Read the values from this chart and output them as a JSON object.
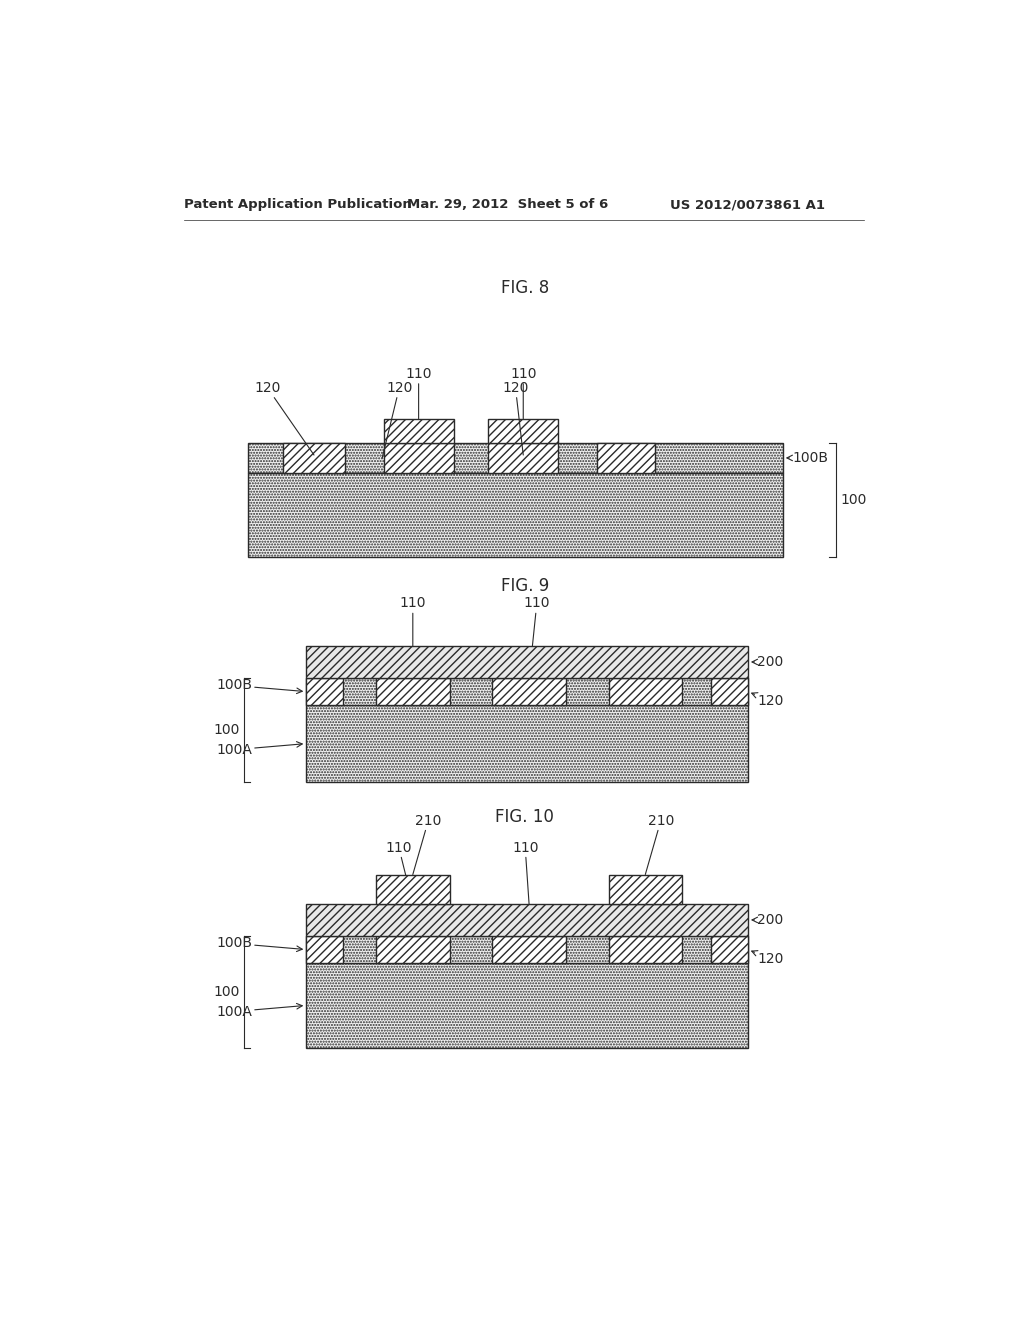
{
  "bg_color": "#ffffff",
  "line_color": "#2a2a2a",
  "fig8_label": "FIG. 8",
  "fig9_label": "FIG. 9",
  "fig10_label": "FIG. 10",
  "header_left": "Patent Application Publication",
  "header_mid": "Mar. 29, 2012  Sheet 5 of 6",
  "header_right": "US 2012/0073861 A1"
}
